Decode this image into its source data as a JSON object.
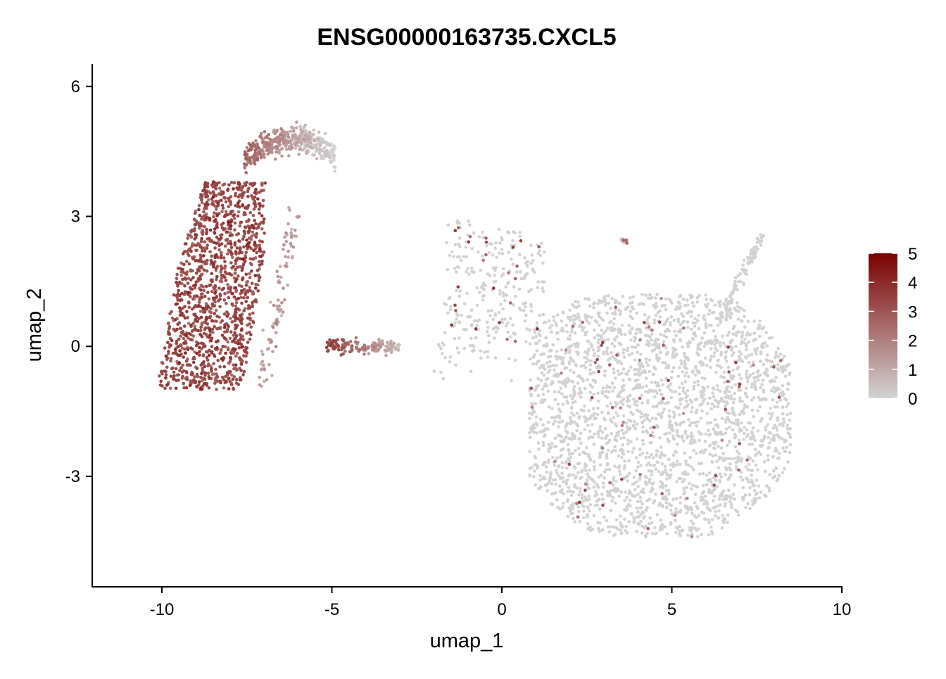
{
  "chart_data": {
    "type": "scatter",
    "title": "ENSG00000163735.CXCL5",
    "xlabel": "umap_1",
    "ylabel": "umap_2",
    "xlim": [
      -12.05,
      10
    ],
    "ylim": [
      -5.55,
      6.5
    ],
    "x_ticks": [
      -10,
      -5,
      0,
      5,
      10
    ],
    "x_tick_labels": [
      "-10",
      "-5",
      "0",
      "5",
      "10"
    ],
    "y_ticks": [
      -3,
      0,
      3,
      6
    ],
    "y_tick_labels": [
      "-3",
      "0",
      "3",
      "6"
    ],
    "grid": false,
    "legend": {
      "placement": "right",
      "type": "colorbar",
      "min": 0,
      "max": 5,
      "ticks": [
        0,
        1,
        2,
        3,
        4,
        5
      ],
      "tick_labels": [
        "0",
        "1",
        "2",
        "3",
        "4",
        "5"
      ],
      "low_color": "#d3d3d3",
      "high_color": "#7a0000"
    },
    "colors": {
      "low": "#d3d3d3",
      "high": "#7a0000",
      "axis": "#000000"
    },
    "cluster_summary": [
      {
        "x_range": [
          -10.5,
          -7.2
        ],
        "y_range": [
          -1.1,
          3.8
        ],
        "approx_expression": 4.0
      },
      {
        "x_range": [
          -7.5,
          -5.0
        ],
        "y_range": [
          3.5,
          5.5
        ],
        "approx_expression": 1.5
      },
      {
        "x_range": [
          -5.2,
          -3.0
        ],
        "y_range": [
          -0.3,
          0.4
        ],
        "approx_expression": 3.5
      },
      {
        "x_range": [
          -2.0,
          8.5
        ],
        "y_range": [
          -4.4,
          3.2
        ],
        "approx_expression": 0.05
      }
    ]
  }
}
